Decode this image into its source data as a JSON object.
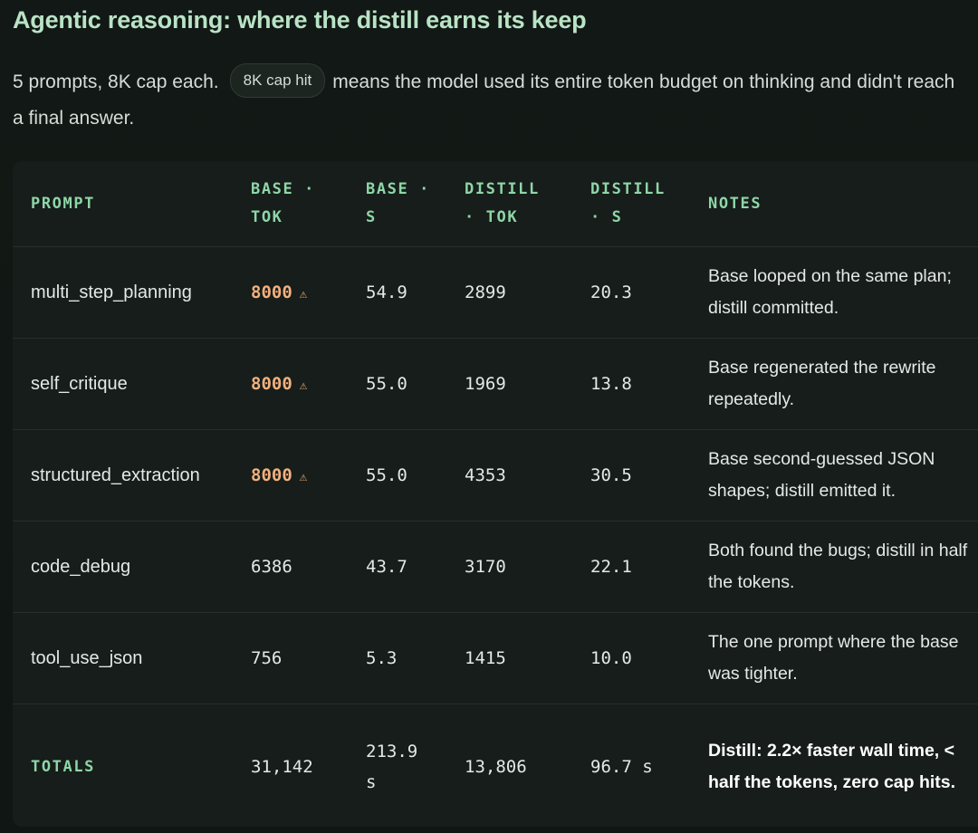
{
  "title": "Agentic reasoning: where the distill earns its keep",
  "intro": {
    "before": "5 prompts, 8K cap each.",
    "badge": "8K cap hit",
    "after": "means the model used its entire token budget on thinking and didn't reach a final answer."
  },
  "table": {
    "headers": {
      "prompt": "PROMPT",
      "base_tok": "BASE · TOK",
      "base_s": "BASE · S",
      "distill_tok": "DISTILL · TOK",
      "distill_s": "DISTILL · S",
      "notes": "NOTES"
    },
    "rows": [
      {
        "prompt": "multi_step_planning",
        "base_tok": "8000",
        "cap_hit": true,
        "base_s": "54.9",
        "distill_tok": "2899",
        "distill_s": "20.3",
        "notes": "Base looped on the same plan; distill committed."
      },
      {
        "prompt": "self_critique",
        "base_tok": "8000",
        "cap_hit": true,
        "base_s": "55.0",
        "distill_tok": "1969",
        "distill_s": "13.8",
        "notes": "Base regenerated the rewrite repeatedly."
      },
      {
        "prompt": "structured_extraction",
        "base_tok": "8000",
        "cap_hit": true,
        "base_s": "55.0",
        "distill_tok": "4353",
        "distill_s": "30.5",
        "notes": "Base second-guessed JSON shapes; distill emitted it."
      },
      {
        "prompt": "code_debug",
        "base_tok": "6386",
        "cap_hit": false,
        "base_s": "43.7",
        "distill_tok": "3170",
        "distill_s": "22.1",
        "notes": "Both found the bugs; distill in half the tokens."
      },
      {
        "prompt": "tool_use_json",
        "base_tok": "756",
        "cap_hit": false,
        "base_s": "5.3",
        "distill_tok": "1415",
        "distill_s": "10.0",
        "notes": "The one prompt where the base was tighter."
      }
    ],
    "totals": {
      "label": "TOTALS",
      "base_tok": "31,142",
      "base_s": "213.9 s",
      "distill_tok": "13,806",
      "distill_s": "96.7 s",
      "notes": "Distill: 2.2× faster wall time, < half the tokens, zero cap hits."
    },
    "warning_glyph": "⚠"
  },
  "colors": {
    "accent_green": "#8fd6a8",
    "title_green": "#b9e3c6",
    "cap_hit_orange": "#f2b07e",
    "background": "#111714",
    "card": "#161d1a"
  }
}
